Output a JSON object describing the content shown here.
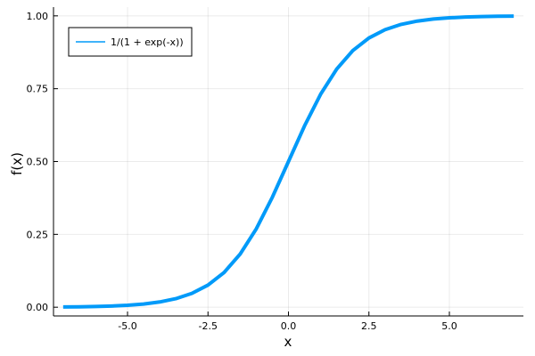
{
  "chart_data": {
    "type": "line",
    "title": "",
    "xlabel": "x",
    "ylabel": "f(x)",
    "xlim": [
      -7.3,
      7.3
    ],
    "ylim": [
      -0.03,
      1.03
    ],
    "x_ticks": [
      -5.0,
      -2.5,
      0.0,
      2.5,
      5.0
    ],
    "x_tick_labels": [
      "-5.0",
      "-2.5",
      "0.0",
      "2.5",
      "5.0"
    ],
    "y_ticks": [
      0.0,
      0.25,
      0.5,
      0.75,
      1.0
    ],
    "y_tick_labels": [
      "0.00",
      "0.25",
      "0.50",
      "0.75",
      "1.00"
    ],
    "grid": true,
    "legend_position": "top-left",
    "series": [
      {
        "name": "1/(1 + exp(-x))",
        "color": "#009af9",
        "x": [
          -7,
          -6.5,
          -6,
          -5.5,
          -5,
          -4.5,
          -4,
          -3.5,
          -3,
          -2.5,
          -2,
          -1.5,
          -1,
          -0.5,
          0,
          0.5,
          1,
          1.5,
          2,
          2.5,
          3,
          3.5,
          4,
          4.5,
          5,
          5.5,
          6,
          6.5,
          7
        ],
        "y": [
          0.0009,
          0.0015,
          0.0025,
          0.0041,
          0.0067,
          0.011,
          0.018,
          0.0293,
          0.0474,
          0.0759,
          0.1192,
          0.1824,
          0.2689,
          0.3775,
          0.5,
          0.6225,
          0.7311,
          0.8176,
          0.8808,
          0.9241,
          0.9526,
          0.9707,
          0.982,
          0.989,
          0.9933,
          0.9959,
          0.9975,
          0.9985,
          0.9991
        ]
      }
    ]
  }
}
